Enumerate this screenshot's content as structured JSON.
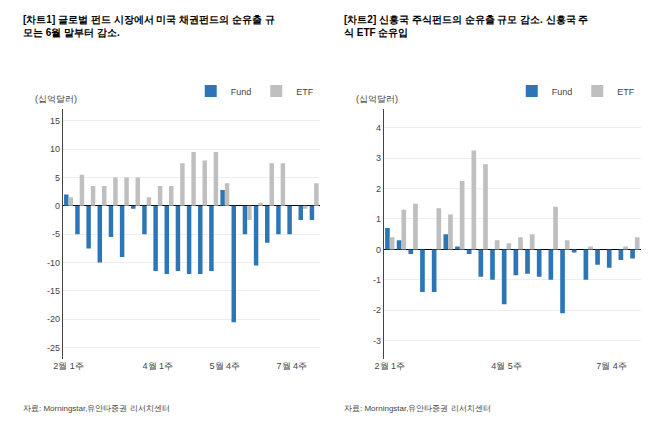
{
  "chart_data": [
    {
      "type": "bar",
      "title": "[차트1] 글로벌 펀드 시장에서 미국 채권펀드의 순유출 규\n모는 6월 말부터 감소.",
      "ylabel": "(십억달러)",
      "categories": [
        "2월 1주",
        null,
        null,
        null,
        null,
        null,
        null,
        null,
        "4월 1주",
        null,
        null,
        null,
        null,
        null,
        "5월 4주",
        null,
        null,
        null,
        null,
        null,
        "7월 4주",
        null,
        null
      ],
      "series": [
        {
          "name": "Fund",
          "color": "#2e75b6",
          "values": [
            2.0,
            -5.0,
            -7.5,
            -10.0,
            -5.5,
            -9.0,
            -0.5,
            -5.0,
            -11.5,
            -12.0,
            -11.5,
            -12.0,
            -12.0,
            -11.5,
            2.8,
            -20.5,
            -5.0,
            -10.5,
            -6.5,
            -5.0,
            -5.0,
            -2.5,
            -2.5
          ]
        },
        {
          "name": "ETF",
          "color": "#bfbfbf",
          "values": [
            1.5,
            5.5,
            3.5,
            3.5,
            5.0,
            5.0,
            5.0,
            1.5,
            3.5,
            3.5,
            7.5,
            9.5,
            8.0,
            9.5,
            4.0,
            0.0,
            -2.5,
            0.5,
            7.5,
            7.5,
            0.0,
            -0.5,
            4.0
          ]
        }
      ],
      "ylim": [
        -27,
        17
      ],
      "yticks": [
        -25,
        -20,
        -15,
        -10,
        -5,
        0,
        5,
        10,
        15
      ],
      "grid": true,
      "legend": "upper right",
      "annotations": [
        "자료: Morningstar,유안타증권 리서치센터"
      ]
    },
    {
      "type": "bar",
      "title": "[차트2] 신흥국 주식펀드의 순유출 규모 감소. 신흥국 주\n식 ETF 순유입",
      "ylabel": "(십억달러)",
      "categories": [
        "2월 1주",
        null,
        null,
        null,
        null,
        null,
        null,
        null,
        null,
        null,
        "4월 5주",
        null,
        null,
        null,
        null,
        null,
        null,
        null,
        null,
        "7월 4주",
        null,
        null
      ],
      "series": [
        {
          "name": "Fund",
          "color": "#2e75b6",
          "values": [
            0.7,
            0.3,
            -0.15,
            -1.4,
            -1.4,
            0.5,
            0.1,
            -0.15,
            -0.9,
            -1.0,
            -1.8,
            -0.85,
            -0.8,
            -0.9,
            -1.0,
            -2.1,
            -0.1,
            -1.0,
            -0.5,
            -0.6,
            -0.35,
            -0.3
          ]
        },
        {
          "name": "ETF",
          "color": "#bfbfbf",
          "values": [
            0.4,
            1.3,
            1.5,
            0.0,
            1.35,
            1.15,
            2.25,
            3.25,
            2.8,
            0.3,
            0.2,
            0.4,
            0.5,
            0.0,
            1.4,
            0.3,
            0.0,
            0.1,
            0.0,
            0.0,
            0.1,
            0.4
          ]
        }
      ],
      "ylim": [
        -3.6,
        4.6
      ],
      "yticks": [
        -3,
        -2,
        -1,
        0,
        1,
        2,
        3,
        4
      ],
      "grid": true,
      "legend": "upper right",
      "annotations": [
        "자료: Morningstar,유안타증권 리서치센터"
      ]
    }
  ]
}
